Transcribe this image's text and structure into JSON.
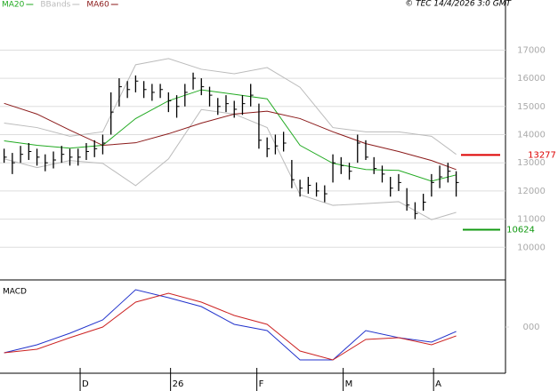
{
  "chart_data": [
    {
      "type": "ohlc",
      "timestamp": "© TEC 14/4/2026 3:0 GMT",
      "xlim": [
        -1,
        122
      ],
      "ylim": [
        9000,
        18400
      ],
      "xticks": [
        {
          "value": 18.5,
          "label": "D"
        },
        {
          "value": 40.5,
          "label": "26"
        },
        {
          "value": 61.5,
          "label": "F"
        },
        {
          "value": 82.5,
          "label": "M"
        },
        {
          "value": 104.5,
          "label": "A"
        }
      ],
      "yticks": [
        10000,
        11000,
        12000,
        13000,
        14000,
        15000,
        16000,
        17000
      ],
      "grid": true,
      "bar_color": "#000000",
      "x": [
        0,
        2,
        4,
        6,
        8,
        10,
        12,
        14,
        16,
        18,
        20,
        22,
        24,
        26,
        28,
        30,
        32,
        34,
        36,
        38,
        40,
        42,
        44,
        46,
        48,
        50,
        52,
        54,
        56,
        58,
        60,
        62,
        64,
        66,
        68,
        70,
        72,
        74,
        76,
        78,
        80,
        82,
        84,
        86,
        88,
        90,
        92,
        94,
        96,
        98,
        100,
        102,
        104,
        106,
        108,
        110
      ],
      "high": [
        13500,
        13350,
        13600,
        13700,
        13500,
        13300,
        13400,
        13600,
        13500,
        13500,
        13700,
        13800,
        14000,
        15500,
        16000,
        15900,
        16100,
        15900,
        15800,
        15800,
        15500,
        15400,
        15800,
        16200,
        16000,
        15700,
        15300,
        15400,
        15200,
        15400,
        15800,
        15100,
        13900,
        14000,
        14100,
        13100,
        12400,
        12500,
        12300,
        12200,
        13300,
        13200,
        13000,
        14000,
        13800,
        13200,
        12900,
        12500,
        12600,
        12100,
        11600,
        11900,
        12600,
        12900,
        13000,
        12700
      ],
      "low": [
        13000,
        12600,
        13000,
        13100,
        12900,
        12700,
        12800,
        13000,
        12900,
        12900,
        13100,
        13200,
        13300,
        14000,
        15000,
        15300,
        15500,
        15300,
        15200,
        15300,
        14800,
        14600,
        15000,
        15600,
        15400,
        15000,
        14700,
        14800,
        14600,
        14700,
        15000,
        13500,
        13200,
        13300,
        13400,
        12100,
        11800,
        11900,
        11800,
        11600,
        12300,
        12600,
        12400,
        13000,
        13100,
        12600,
        12300,
        11800,
        12000,
        11300,
        11000,
        11300,
        11800,
        12100,
        12300,
        11800
      ],
      "close": [
        13200,
        13000,
        13300,
        13400,
        13200,
        13000,
        13100,
        13300,
        13200,
        13200,
        13400,
        13500,
        13700,
        14800,
        15700,
        15600,
        15900,
        15600,
        15500,
        15600,
        15200,
        15000,
        15500,
        16000,
        15700,
        15400,
        15000,
        15100,
        14900,
        15100,
        15400,
        13800,
        13500,
        13600,
        13700,
        12400,
        12100,
        12200,
        12000,
        11900,
        13000,
        12900,
        12700,
        13700,
        13200,
        12800,
        12600,
        12100,
        12300,
        11500,
        11200,
        11600,
        12300,
        12500,
        12700,
        12300
      ],
      "series": [
        {
          "name": "MA20",
          "color": "#22aa22",
          "x": [
            0,
            8,
            16,
            24,
            32,
            40,
            48,
            56,
            64,
            72,
            80,
            88,
            96,
            104,
            110
          ],
          "values": [
            13780,
            13620,
            13520,
            13620,
            14570,
            15200,
            15590,
            15430,
            15270,
            13620,
            12980,
            12760,
            12730,
            12350,
            12570
          ]
        },
        {
          "name": "BBands",
          "color": "#bbbbbb",
          "x": [
            0,
            8,
            16,
            24,
            32,
            40,
            48,
            56,
            64,
            72,
            80,
            88,
            96,
            104,
            110
          ],
          "upper": [
            14410,
            14250,
            13940,
            14100,
            16480,
            16700,
            16320,
            16160,
            16380,
            15680,
            14250,
            14100,
            14100,
            13940,
            13300
          ],
          "lower": [
            13140,
            12830,
            13080,
            12980,
            12190,
            13140,
            14890,
            14730,
            14250,
            11870,
            11490,
            11550,
            11620,
            10980,
            11240
          ]
        },
        {
          "name": "MA60",
          "color": "#8b1a1a",
          "x": [
            0,
            8,
            16,
            24,
            32,
            40,
            48,
            56,
            64,
            72,
            80,
            88,
            96,
            104,
            110
          ],
          "values": [
            15110,
            14730,
            14160,
            13620,
            13710,
            14030,
            14410,
            14730,
            14830,
            14570,
            14100,
            13680,
            13400,
            13080,
            12760
          ]
        }
      ],
      "levels": [
        {
          "value": 13277,
          "color": "#dd0000"
        },
        {
          "value": 10624,
          "color": "#119911"
        }
      ]
    },
    {
      "type": "line",
      "title": "MACD",
      "xlim": [
        -1,
        122
      ],
      "ylim": [
        -1000,
        1000
      ],
      "yticks": [
        {
          "value": 0,
          "label": "000"
        }
      ],
      "series": [
        {
          "color": "#2233cc",
          "x": [
            0,
            8,
            16,
            24,
            32,
            40,
            48,
            56,
            64,
            72,
            80,
            88,
            96,
            104,
            110
          ],
          "values": [
            -580,
            -400,
            -140,
            160,
            840,
            660,
            460,
            60,
            -80,
            -740,
            -740,
            -80,
            -240,
            -340,
            -100
          ]
        },
        {
          "color": "#cc2222",
          "x": [
            0,
            8,
            16,
            24,
            32,
            40,
            48,
            56,
            64,
            72,
            80,
            88,
            96,
            104,
            110
          ],
          "values": [
            -580,
            -500,
            -240,
            0,
            560,
            760,
            560,
            260,
            60,
            -540,
            -740,
            -280,
            -240,
            -400,
            -200
          ]
        }
      ]
    }
  ]
}
